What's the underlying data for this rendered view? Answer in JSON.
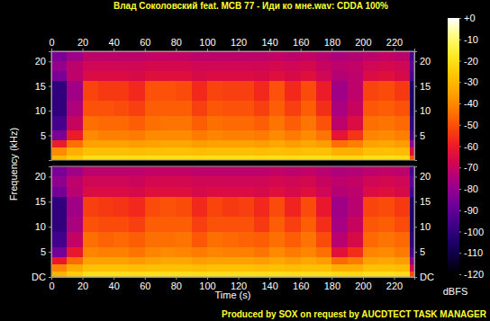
{
  "chart_data": {
    "type": "heatmap",
    "title": "Влад Соколовский feat. MCB 77 - Иди ко мне.wav: CDDA 100%",
    "annotations": [
      "Produced by SOX on request by AUCDTECT TASK MANAGER"
    ],
    "x_label": "Time (s)",
    "y_label": "Frequency (kHz)",
    "xlim": [
      0,
      233
    ],
    "xticks": [
      0,
      20,
      40,
      60,
      80,
      100,
      120,
      140,
      160,
      180,
      200,
      220
    ],
    "ylim": [
      0,
      22.05
    ],
    "x_edges": [
      0,
      10,
      20,
      30,
      40,
      50,
      60,
      70,
      80,
      90,
      100,
      110,
      120,
      130,
      140,
      150,
      160,
      170,
      180,
      190,
      200,
      210,
      220,
      230,
      233
    ],
    "y_edges": [
      0,
      1,
      2.5,
      4,
      6,
      9,
      12,
      16,
      18,
      20,
      22.05
    ],
    "colorbar": {
      "label": "dBFS",
      "range": [
        -120,
        0
      ],
      "ticks": [
        {
          "value": 0,
          "label": "+0"
        },
        -10,
        -20,
        -30,
        -40,
        -50,
        -60,
        -70,
        -80,
        -90,
        -100,
        -110,
        -120
      ]
    },
    "panels": [
      {
        "yticks": [
          5,
          10,
          15,
          20
        ],
        "cells": [
          [
            -30,
            -40,
            -60,
            -85,
            -95,
            -100,
            -100,
            -85,
            -80,
            -85
          ],
          [
            -25,
            -32,
            -45,
            -60,
            -70,
            -75,
            -78,
            -72,
            -72,
            -78
          ],
          [
            -20,
            -28,
            -35,
            -40,
            -45,
            -50,
            -52,
            -65,
            -68,
            -72
          ],
          [
            -20,
            -28,
            -35,
            -42,
            -46,
            -50,
            -54,
            -65,
            -68,
            -72
          ],
          [
            -20,
            -28,
            -35,
            -42,
            -46,
            -51,
            -54,
            -65,
            -68,
            -72
          ],
          [
            -21,
            -29,
            -36,
            -43,
            -48,
            -53,
            -57,
            -66,
            -68,
            -72
          ],
          [
            -20,
            -28,
            -35,
            -40,
            -45,
            -48,
            -50,
            -64,
            -67,
            -71
          ],
          [
            -20,
            -28,
            -34,
            -40,
            -44,
            -48,
            -50,
            -64,
            -67,
            -71
          ],
          [
            -20,
            -28,
            -34,
            -40,
            -44,
            -48,
            -51,
            -64,
            -67,
            -71
          ],
          [
            -21,
            -29,
            -36,
            -43,
            -48,
            -53,
            -57,
            -66,
            -68,
            -72
          ],
          [
            -20,
            -28,
            -35,
            -41,
            -45,
            -49,
            -52,
            -65,
            -68,
            -72
          ],
          [
            -20,
            -28,
            -35,
            -42,
            -46,
            -50,
            -53,
            -65,
            -68,
            -72
          ],
          [
            -20,
            -28,
            -35,
            -42,
            -46,
            -50,
            -53,
            -65,
            -68,
            -72
          ],
          [
            -21,
            -29,
            -36,
            -43,
            -48,
            -53,
            -57,
            -66,
            -68,
            -72
          ],
          [
            -20,
            -28,
            -34,
            -40,
            -44,
            -48,
            -50,
            -64,
            -67,
            -71
          ],
          [
            -21,
            -29,
            -36,
            -43,
            -48,
            -53,
            -57,
            -66,
            -68,
            -72
          ],
          [
            -20,
            -28,
            -34,
            -40,
            -44,
            -48,
            -51,
            -64,
            -67,
            -71
          ],
          [
            -20,
            -28,
            -36,
            -44,
            -50,
            -56,
            -60,
            -68,
            -70,
            -73
          ],
          [
            -22,
            -32,
            -45,
            -62,
            -72,
            -76,
            -78,
            -74,
            -72,
            -75
          ],
          [
            -22,
            -32,
            -42,
            -55,
            -65,
            -70,
            -72,
            -72,
            -71,
            -74
          ],
          [
            -20,
            -28,
            -35,
            -41,
            -45,
            -49,
            -52,
            -65,
            -68,
            -72
          ],
          [
            -20,
            -28,
            -34,
            -40,
            -44,
            -48,
            -51,
            -64,
            -67,
            -71
          ],
          [
            -21,
            -29,
            -36,
            -42,
            -46,
            -50,
            -54,
            -66,
            -68,
            -72
          ],
          [
            -50,
            -65,
            -80,
            -95,
            -100,
            -105,
            -105,
            -95,
            -90,
            -95
          ]
        ]
      },
      {
        "yticks": [
          {
            "value": 0,
            "label": "DC"
          },
          5,
          10,
          15,
          20
        ],
        "cells": [
          [
            -31,
            -41,
            -61,
            -86,
            -96,
            -100,
            -100,
            -86,
            -81,
            -85
          ],
          [
            -25,
            -33,
            -46,
            -61,
            -71,
            -76,
            -78,
            -73,
            -72,
            -78
          ],
          [
            -20,
            -28,
            -35,
            -41,
            -45,
            -50,
            -53,
            -65,
            -68,
            -72
          ],
          [
            -20,
            -28,
            -35,
            -42,
            -47,
            -51,
            -54,
            -65,
            -68,
            -72
          ],
          [
            -20,
            -28,
            -35,
            -42,
            -46,
            -51,
            -55,
            -65,
            -68,
            -72
          ],
          [
            -21,
            -29,
            -37,
            -44,
            -48,
            -53,
            -57,
            -66,
            -69,
            -72
          ],
          [
            -20,
            -28,
            -35,
            -41,
            -45,
            -48,
            -51,
            -64,
            -67,
            -71
          ],
          [
            -20,
            -28,
            -34,
            -40,
            -45,
            -48,
            -50,
            -64,
            -67,
            -71
          ],
          [
            -20,
            -28,
            -34,
            -41,
            -44,
            -48,
            -51,
            -64,
            -67,
            -71
          ],
          [
            -21,
            -29,
            -36,
            -43,
            -49,
            -53,
            -57,
            -66,
            -68,
            -72
          ],
          [
            -20,
            -28,
            -35,
            -41,
            -45,
            -50,
            -52,
            -65,
            -68,
            -72
          ],
          [
            -20,
            -28,
            -35,
            -42,
            -46,
            -50,
            -54,
            -65,
            -68,
            -72
          ],
          [
            -20,
            -28,
            -35,
            -42,
            -47,
            -50,
            -53,
            -65,
            -68,
            -72
          ],
          [
            -21,
            -29,
            -36,
            -44,
            -48,
            -54,
            -57,
            -66,
            -68,
            -72
          ],
          [
            -20,
            -28,
            -34,
            -40,
            -45,
            -48,
            -51,
            -64,
            -67,
            -71
          ],
          [
            -21,
            -29,
            -36,
            -43,
            -48,
            -53,
            -58,
            -66,
            -68,
            -72
          ],
          [
            -20,
            -28,
            -34,
            -41,
            -44,
            -48,
            -51,
            -64,
            -67,
            -71
          ],
          [
            -20,
            -28,
            -36,
            -45,
            -51,
            -56,
            -61,
            -68,
            -70,
            -73
          ],
          [
            -22,
            -32,
            -46,
            -63,
            -73,
            -77,
            -78,
            -74,
            -72,
            -75
          ],
          [
            -22,
            -32,
            -43,
            -56,
            -66,
            -70,
            -73,
            -72,
            -71,
            -74
          ],
          [
            -20,
            -28,
            -35,
            -41,
            -46,
            -49,
            -52,
            -65,
            -68,
            -72
          ],
          [
            -20,
            -28,
            -34,
            -40,
            -44,
            -48,
            -51,
            -64,
            -67,
            -71
          ],
          [
            -21,
            -29,
            -36,
            -43,
            -46,
            -51,
            -54,
            -66,
            -68,
            -72
          ],
          [
            -51,
            -66,
            -81,
            -95,
            -101,
            -105,
            -105,
            -96,
            -90,
            -95
          ]
        ]
      }
    ]
  }
}
